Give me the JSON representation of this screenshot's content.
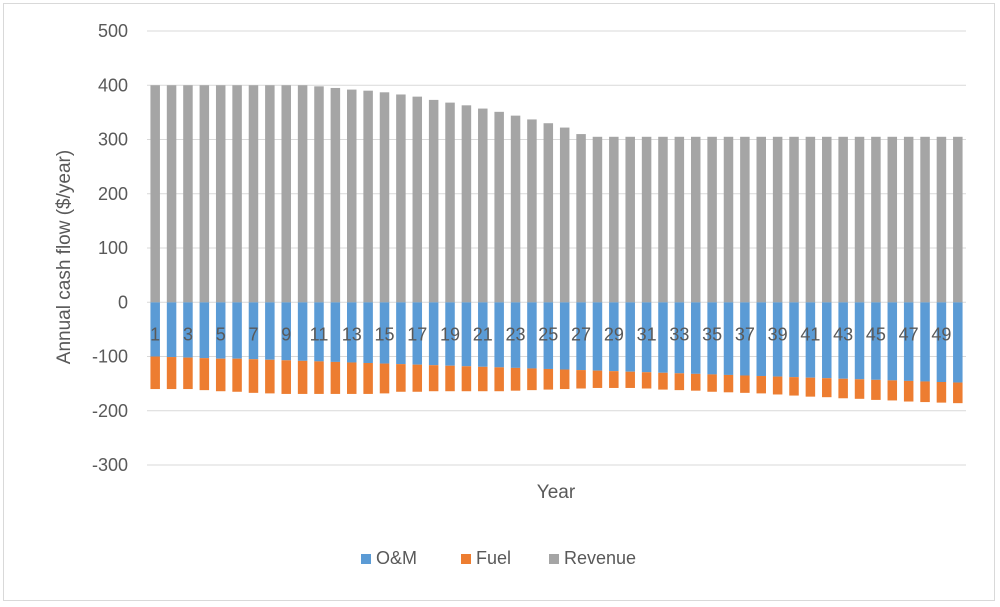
{
  "chart_data": {
    "type": "bar",
    "stacked": true,
    "xlabel": "Year",
    "ylabel": "Annual cash flow ($/year)",
    "ylim": [
      -300,
      500
    ],
    "yticks": [
      500,
      400,
      300,
      200,
      100,
      0,
      -100,
      -200,
      -300
    ],
    "grid": true,
    "legend_position": "bottom",
    "categories": [
      "1",
      "2",
      "3",
      "4",
      "5",
      "6",
      "7",
      "8",
      "9",
      "10",
      "11",
      "12",
      "13",
      "14",
      "15",
      "16",
      "17",
      "18",
      "19",
      "20",
      "21",
      "22",
      "23",
      "24",
      "25",
      "26",
      "27",
      "28",
      "29",
      "30",
      "31",
      "32",
      "33",
      "34",
      "35",
      "36",
      "37",
      "38",
      "39",
      "40",
      "41",
      "42",
      "43",
      "44",
      "45",
      "46",
      "47",
      "48",
      "49",
      "50"
    ],
    "series": [
      {
        "name": "O&M",
        "color": "#5b9bd5",
        "values": [
          -100,
          -101,
          -102,
          -103,
          -104,
          -104,
          -105,
          -106,
          -107,
          -108,
          -109,
          -110,
          -111,
          -112,
          -113,
          -114,
          -115,
          -116,
          -117,
          -118,
          -119,
          -120,
          -121,
          -122,
          -123,
          -124,
          -125,
          -126,
          -127,
          -128,
          -129,
          -130,
          -131,
          -132,
          -133,
          -134,
          -135,
          -136,
          -137,
          -138,
          -139,
          -140,
          -141,
          -142,
          -143,
          -144,
          -145,
          -146,
          -147,
          -148
        ]
      },
      {
        "name": "Fuel",
        "color": "#ed7d31",
        "values": [
          -60,
          -59,
          -58,
          -59,
          -60,
          -61,
          -62,
          -62,
          -62,
          -61,
          -60,
          -59,
          -58,
          -57,
          -55,
          -51,
          -50,
          -48,
          -47,
          -46,
          -45,
          -44,
          -42,
          -40,
          -38,
          -36,
          -34,
          -32,
          -31,
          -30,
          -30,
          -31,
          -31,
          -31,
          -32,
          -32,
          -32,
          -32,
          -33,
          -34,
          -35,
          -35,
          -36,
          -36,
          -37,
          -37,
          -38,
          -38,
          -38,
          -38
        ]
      },
      {
        "name": "Revenue",
        "color": "#a5a5a5",
        "values": [
          400,
          400,
          400,
          400,
          400,
          400,
          400,
          400,
          400,
          400,
          398,
          395,
          392,
          390,
          387,
          383,
          379,
          373,
          368,
          363,
          357,
          351,
          344,
          337,
          330,
          322,
          310,
          305,
          305,
          305,
          305,
          305,
          305,
          305,
          305,
          305,
          305,
          305,
          305,
          305,
          305,
          305,
          305,
          305,
          305,
          305,
          305,
          305,
          305,
          305
        ]
      }
    ]
  }
}
